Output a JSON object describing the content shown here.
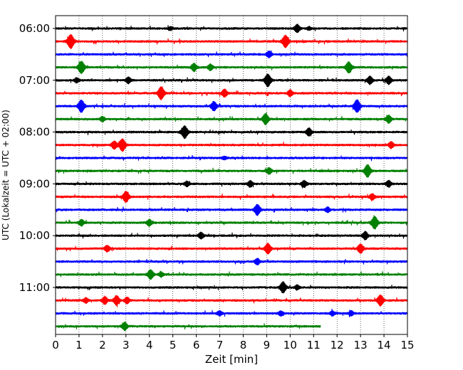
{
  "chart_data": {
    "type": "line",
    "title": "",
    "xlabel": "Zeit  [min]",
    "ylabel": "UTC (Lokalzeit = UTC + 02:00)",
    "xlim": [
      0,
      15
    ],
    "x_ticks": [
      "0",
      "1",
      "2",
      "3",
      "4",
      "5",
      "6",
      "7",
      "8",
      "9",
      "10",
      "11",
      "12",
      "13",
      "14",
      "15"
    ],
    "y_tick_labels": [
      "06:00",
      "07:00",
      "08:00",
      "09:00",
      "10:00",
      "11:00"
    ],
    "grid": "vertical dotted",
    "traces_per_hour": 4,
    "trace_minutes": 15,
    "trace_colors": [
      "#000000",
      "#ff0000",
      "#0000ff",
      "#008000"
    ],
    "series": [
      {
        "start_utc": "06:00",
        "end_minute": 15,
        "events": [
          {
            "x": 4.9,
            "amp": 2
          },
          {
            "x": 10.3,
            "amp": 5
          },
          {
            "x": 10.8,
            "amp": 2
          }
        ]
      },
      {
        "start_utc": "06:15",
        "end_minute": 15,
        "events": [
          {
            "x": 0.65,
            "amp": 9
          },
          {
            "x": 9.8,
            "amp": 8
          }
        ]
      },
      {
        "start_utc": "06:30",
        "end_minute": 15,
        "events": [
          {
            "x": 9.1,
            "amp": 4
          }
        ]
      },
      {
        "start_utc": "06:45",
        "end_minute": 15,
        "events": [
          {
            "x": 1.1,
            "amp": 8
          },
          {
            "x": 5.9,
            "amp": 5
          },
          {
            "x": 6.6,
            "amp": 4
          },
          {
            "x": 12.5,
            "amp": 7
          }
        ]
      },
      {
        "start_utc": "07:00",
        "end_minute": 15,
        "events": [
          {
            "x": 0.9,
            "amp": 3
          },
          {
            "x": 3.1,
            "amp": 4
          },
          {
            "x": 9.05,
            "amp": 8
          },
          {
            "x": 13.4,
            "amp": 5
          },
          {
            "x": 14.2,
            "amp": 5
          }
        ]
      },
      {
        "start_utc": "07:15",
        "end_minute": 15,
        "events": [
          {
            "x": 4.5,
            "amp": 8
          },
          {
            "x": 7.2,
            "amp": 5
          },
          {
            "x": 10.0,
            "amp": 4
          }
        ]
      },
      {
        "start_utc": "07:30",
        "end_minute": 15,
        "events": [
          {
            "x": 1.1,
            "amp": 8
          },
          {
            "x": 6.75,
            "amp": 6
          },
          {
            "x": 12.85,
            "amp": 8
          }
        ]
      },
      {
        "start_utc": "07:45",
        "end_minute": 15,
        "events": [
          {
            "x": 2.0,
            "amp": 3
          },
          {
            "x": 8.95,
            "amp": 7
          },
          {
            "x": 14.2,
            "amp": 5
          }
        ]
      },
      {
        "start_utc": "08:00",
        "end_minute": 15,
        "events": [
          {
            "x": 5.5,
            "amp": 8
          },
          {
            "x": 10.8,
            "amp": 5
          }
        ]
      },
      {
        "start_utc": "08:15",
        "end_minute": 15,
        "events": [
          {
            "x": 2.5,
            "amp": 5
          },
          {
            "x": 2.85,
            "amp": 8
          },
          {
            "x": 14.3,
            "amp": 4
          }
        ]
      },
      {
        "start_utc": "08:30",
        "end_minute": 15,
        "events": [
          {
            "x": 7.2,
            "amp": 2
          }
        ]
      },
      {
        "start_utc": "08:45",
        "end_minute": 15,
        "events": [
          {
            "x": 9.1,
            "amp": 4
          },
          {
            "x": 13.3,
            "amp": 8
          }
        ]
      },
      {
        "start_utc": "09:00",
        "end_minute": 15,
        "events": [
          {
            "x": 5.6,
            "amp": 3
          },
          {
            "x": 8.3,
            "amp": 4
          },
          {
            "x": 10.6,
            "amp": 4
          },
          {
            "x": 14.2,
            "amp": 4
          }
        ]
      },
      {
        "start_utc": "09:15",
        "end_minute": 15,
        "events": [
          {
            "x": 3.0,
            "amp": 7
          },
          {
            "x": 13.5,
            "amp": 4
          }
        ]
      },
      {
        "start_utc": "09:30",
        "end_minute": 15,
        "events": [
          {
            "x": 8.6,
            "amp": 7
          },
          {
            "x": 11.6,
            "amp": 3
          }
        ]
      },
      {
        "start_utc": "09:45",
        "end_minute": 15,
        "events": [
          {
            "x": 1.1,
            "amp": 4
          },
          {
            "x": 4.0,
            "amp": 4
          },
          {
            "x": 13.6,
            "amp": 8
          }
        ]
      },
      {
        "start_utc": "10:00",
        "end_minute": 15,
        "events": [
          {
            "x": 6.2,
            "amp": 4
          },
          {
            "x": 13.2,
            "amp": 5
          }
        ]
      },
      {
        "start_utc": "10:15",
        "end_minute": 15,
        "events": [
          {
            "x": 2.2,
            "amp": 4
          },
          {
            "x": 9.05,
            "amp": 7
          },
          {
            "x": 13.0,
            "amp": 6
          }
        ]
      },
      {
        "start_utc": "10:30",
        "end_minute": 15,
        "events": [
          {
            "x": 8.6,
            "amp": 4
          }
        ]
      },
      {
        "start_utc": "10:45",
        "end_minute": 15,
        "events": [
          {
            "x": 4.05,
            "amp": 6
          },
          {
            "x": 4.5,
            "amp": 3
          }
        ]
      },
      {
        "start_utc": "11:00",
        "end_minute": 15,
        "events": [
          {
            "x": 9.7,
            "amp": 7
          },
          {
            "x": 10.3,
            "amp": 3
          }
        ]
      },
      {
        "start_utc": "11:15",
        "end_minute": 15,
        "events": [
          {
            "x": 1.3,
            "amp": 3
          },
          {
            "x": 2.1,
            "amp": 5
          },
          {
            "x": 2.6,
            "amp": 6
          },
          {
            "x": 3.05,
            "amp": 4
          },
          {
            "x": 13.85,
            "amp": 7
          }
        ]
      },
      {
        "start_utc": "11:30",
        "end_minute": 15,
        "events": [
          {
            "x": 7.0,
            "amp": 3
          },
          {
            "x": 9.6,
            "amp": 3
          },
          {
            "x": 11.8,
            "amp": 3
          },
          {
            "x": 12.6,
            "amp": 3
          }
        ]
      },
      {
        "start_utc": "11:45",
        "end_minute": 11.3,
        "events": [
          {
            "x": 2.95,
            "amp": 5
          }
        ]
      }
    ]
  }
}
